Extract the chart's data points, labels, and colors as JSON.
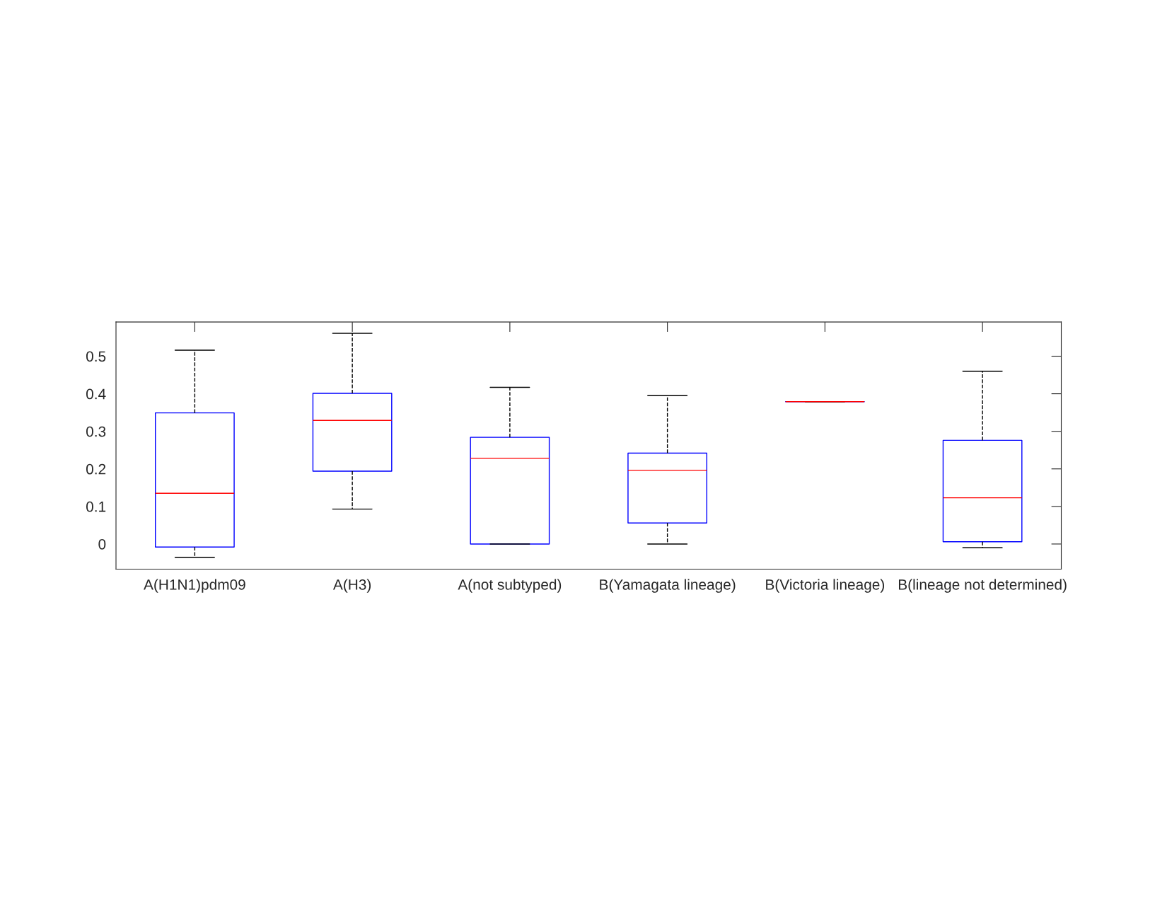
{
  "chart_data": {
    "type": "box",
    "categories": [
      "A(H1N1)pdm09",
      "A(H3)",
      "A(not subtyped)",
      "B(Yamagata lineage)",
      "B(Victoria lineage)",
      "B(lineage not determined)"
    ],
    "series": [
      {
        "color": "#0000ff",
        "boxes": [
          {
            "low": -0.036,
            "q1": -0.008,
            "median": 0.135,
            "q3": 0.349,
            "high": 0.516
          },
          {
            "low": 0.093,
            "q1": 0.194,
            "median": 0.329,
            "q3": 0.401,
            "high": 0.561
          },
          {
            "low": 0.0,
            "q1": 0.0,
            "median": 0.228,
            "q3": 0.284,
            "high": 0.417
          },
          {
            "low": 0.0,
            "q1": 0.056,
            "median": 0.196,
            "q3": 0.242,
            "high": 0.395
          },
          {
            "low": 0.379,
            "q1": 0.379,
            "median": 0.379,
            "q3": 0.379,
            "high": 0.379
          },
          {
            "low": -0.01,
            "q1": 0.006,
            "median": 0.123,
            "q3": 0.276,
            "high": 0.46
          }
        ]
      }
    ],
    "ylim": [
      -0.067,
      0.591
    ],
    "yticks": [
      0,
      0.1,
      0.2,
      0.3,
      0.4,
      0.5
    ],
    "grid": false
  }
}
